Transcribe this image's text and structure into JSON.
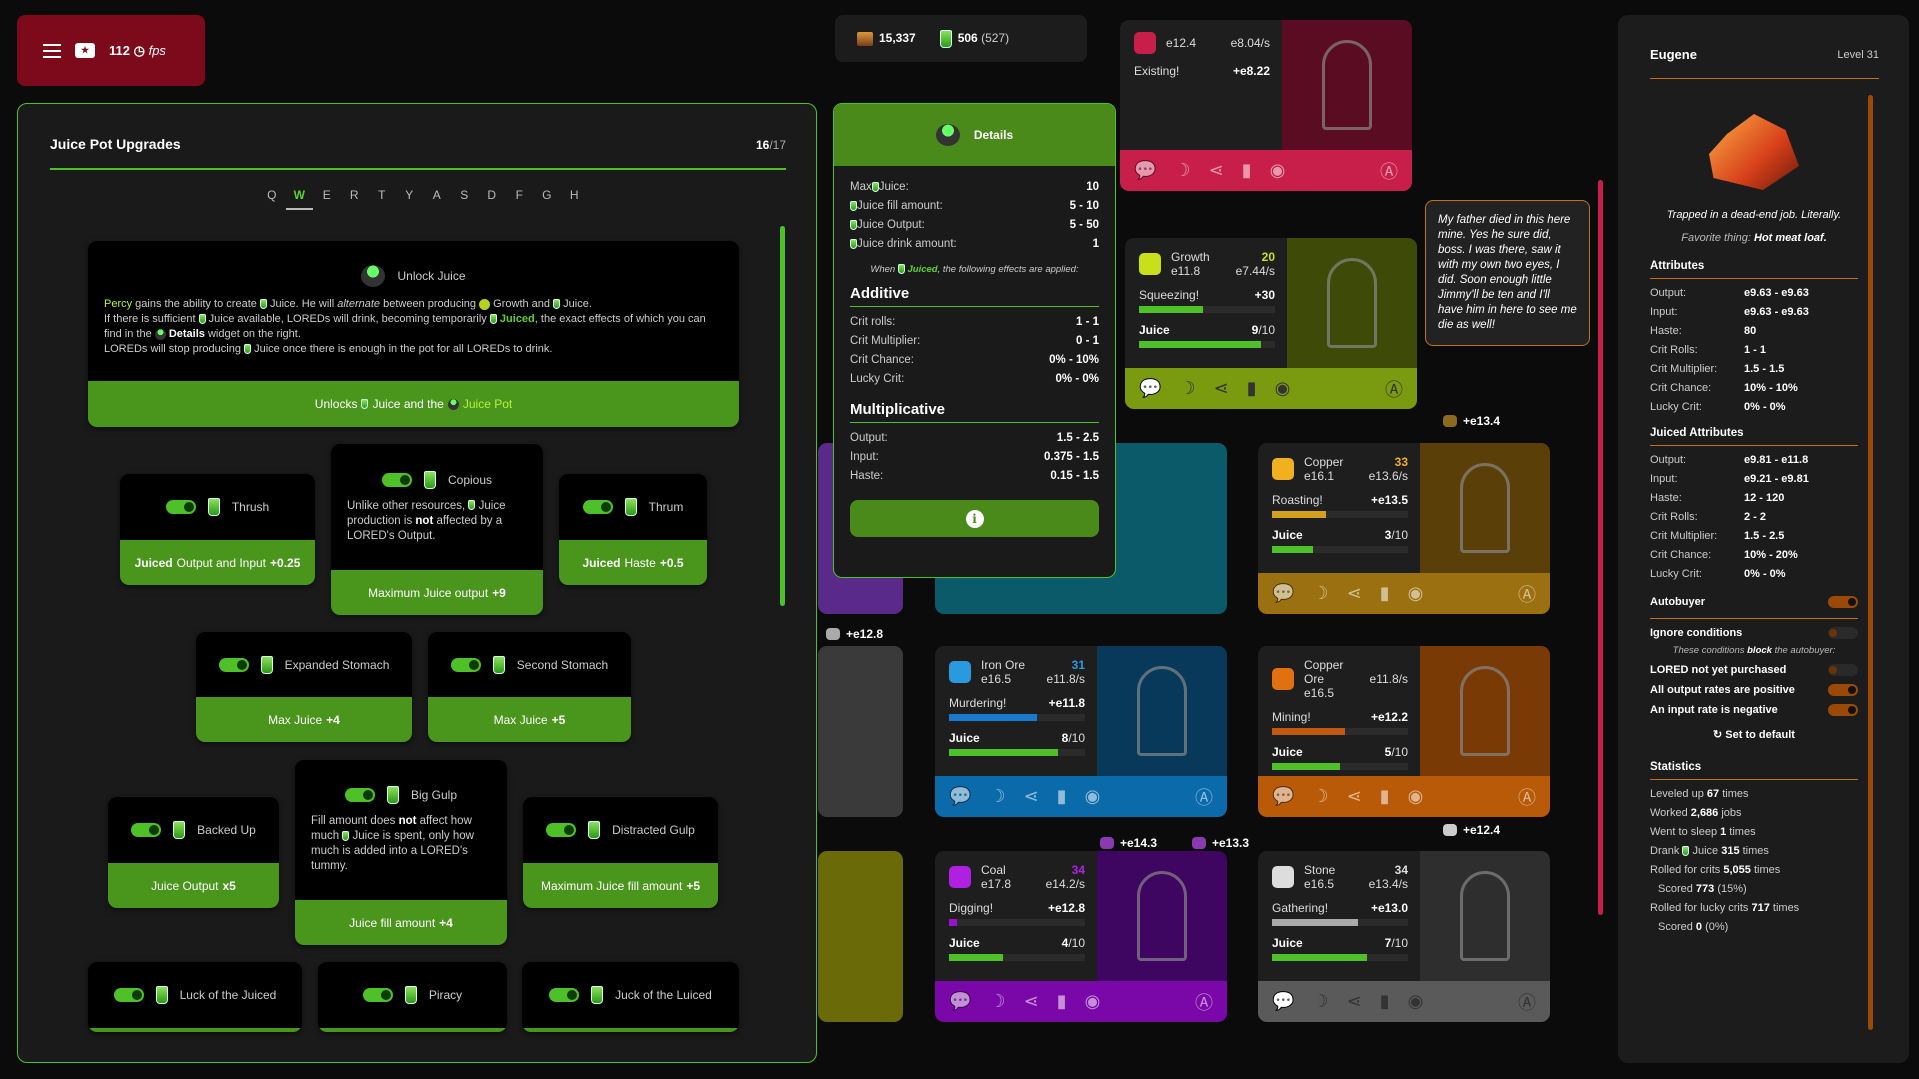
{
  "topbar": {
    "fps_value": "112",
    "fps_unit": "fps",
    "icons": [
      "menu-icon",
      "ticket-icon",
      "speedometer-icon"
    ]
  },
  "upgrades_panel": {
    "title": "Juice Pot Upgrades",
    "owned": "16",
    "total": "/17",
    "tabs": [
      "Q",
      "W",
      "E",
      "R",
      "T",
      "Y",
      "A",
      "S",
      "D",
      "F",
      "G",
      "H"
    ],
    "active_tab": "W",
    "unlock": {
      "title": "Unlock Juice",
      "p1": [
        {
          "t": "Percy",
          "c": "hl"
        },
        {
          "t": " gains the ability to create "
        },
        {
          "i": "glass"
        },
        {
          "t": " Juice. He will "
        },
        {
          "t": "alternate",
          "c": "em"
        },
        {
          "t": " between producing "
        },
        {
          "i": "growth"
        },
        {
          "t": " Growth and "
        },
        {
          "i": "glass"
        },
        {
          "t": " Juice."
        }
      ],
      "p2": [
        {
          "t": "If there is sufficient "
        },
        {
          "i": "glass"
        },
        {
          "t": " Juice available, LOREDs will drink, becoming temporarily "
        },
        {
          "i": "glass"
        },
        {
          "t": " "
        },
        {
          "t": "Juiced",
          "c": "hlg"
        },
        {
          "t": ", the exact effects of which you can find in the "
        },
        {
          "i": "pot"
        },
        {
          "t": " "
        },
        {
          "t": "Details",
          "c": "b"
        },
        {
          "t": " widget on the right."
        }
      ],
      "p3": [
        {
          "t": "LOREDs will stop producing "
        },
        {
          "i": "glass"
        },
        {
          "t": " Juice once there is enough in the pot for all LOREDs to drink."
        }
      ],
      "effect": [
        {
          "t": "Unlocks "
        },
        {
          "i": "glass"
        },
        {
          "t": " Juice and the "
        },
        {
          "i": "pot"
        },
        {
          "t": " Juice Pot",
          "c": "hl"
        }
      ]
    },
    "cards": [
      {
        "name": "Thrush",
        "effect": [
          {
            "t": "Juiced",
            "c": "b"
          },
          {
            "t": " Output and Input "
          },
          {
            "t": "+0.25",
            "c": "b"
          }
        ]
      },
      {
        "name": "Copious",
        "desc": [
          {
            "t": "Unlike other resources, "
          },
          {
            "i": "glass"
          },
          {
            "t": " Juice production is "
          },
          {
            "t": "not",
            "c": "b"
          },
          {
            "t": " affected by a LORED's Output."
          }
        ],
        "effect": [
          {
            "t": "Maximum Juice output "
          },
          {
            "t": "+9",
            "c": "b"
          }
        ]
      },
      {
        "name": "Thrum",
        "effect": [
          {
            "t": "Juiced",
            "c": "b"
          },
          {
            "t": " Haste "
          },
          {
            "t": "+0.5",
            "c": "b"
          }
        ]
      },
      {
        "name": "Expanded Stomach",
        "effect": [
          {
            "t": "Max Juice "
          },
          {
            "t": "+4",
            "c": "b"
          }
        ]
      },
      {
        "name": "Second Stomach",
        "effect": [
          {
            "t": "Max Juice "
          },
          {
            "t": "+5",
            "c": "b"
          }
        ]
      },
      {
        "name": "Backed Up",
        "effect": [
          {
            "t": "Juice Output "
          },
          {
            "t": "x5",
            "c": "b"
          }
        ]
      },
      {
        "name": "Big Gulp",
        "desc": [
          {
            "t": "Fill amount does "
          },
          {
            "t": "not",
            "c": "b"
          },
          {
            "t": " affect how much "
          },
          {
            "i": "glass"
          },
          {
            "t": " Juice is spent, only how much is added into a LORED's tummy."
          }
        ],
        "effect": [
          {
            "t": "Juice fill amount "
          },
          {
            "t": "+4",
            "c": "b"
          }
        ]
      },
      {
        "name": "Distracted Gulp",
        "effect": [
          {
            "t": "Maximum Juice fill amount "
          },
          {
            "t": "+5",
            "c": "b"
          }
        ]
      },
      {
        "name": "Luck of the Juiced"
      },
      {
        "name": "Piracy"
      },
      {
        "name": "Juck of the Luiced"
      }
    ]
  },
  "resources": {
    "chests": "15,337",
    "juice": "506",
    "juice_paren": "(527)"
  },
  "details": {
    "title": "Details",
    "top": [
      {
        "k": "Max",
        "icon": true,
        "k2": "Juice:",
        "v": "10"
      },
      {
        "k": "",
        "icon": true,
        "k2": "Juice fill amount:",
        "v": "5 - 10"
      },
      {
        "k": "",
        "icon": true,
        "k2": "Juice Output:",
        "v": "5 - 50"
      },
      {
        "k": "",
        "icon": true,
        "k2": "Juice drink amount:",
        "v": "1"
      }
    ],
    "when_pre": "When",
    "when_juiced": "Juiced",
    "when_post": ", the following effects are applied:",
    "additive_title": "Additive",
    "additive": [
      {
        "k": "Crit rolls:",
        "v": "1 - 1"
      },
      {
        "k": "Crit Multiplier:",
        "v": "0 - 1"
      },
      {
        "k": "Crit Chance:",
        "v": "0% - 10%"
      },
      {
        "k": "Lucky Crit:",
        "v": "0% - 0%"
      }
    ],
    "multiplicative_title": "Multiplicative",
    "multiplicative": [
      {
        "k": "Output:",
        "v": "1.5 - 2.5"
      },
      {
        "k": "Input:",
        "v": "0.375 - 1.5"
      },
      {
        "k": "Haste:",
        "v": "0.15 - 1.5"
      }
    ]
  },
  "loreds": [
    {
      "id": "partial-top",
      "amount": "e12.4",
      "rate": "e8.04/s",
      "job": "Existing!",
      "gain": "+e8.22",
      "color": "#c81e4a",
      "dark": "#5a0c22"
    },
    {
      "id": "growth",
      "name": "Growth",
      "level": "20",
      "amount": "e11.8",
      "rate": "e7.44/s",
      "job": "Squeezing!",
      "gain": "+30",
      "job_progress": 0.47,
      "juice": "9",
      "juice_max": "/10",
      "color": "#7a9a10",
      "dark": "#3e4a08",
      "level_color": "#c8e01a",
      "bar": "#4fc128"
    },
    {
      "id": "copper",
      "name": "Copper",
      "level": "33",
      "amount": "e16.1",
      "rate": "e13.6/s",
      "job": "Roasting!",
      "gain": "+e13.5",
      "job_progress": 0.4,
      "juice": "3",
      "juice_max": "/10",
      "color": "#9a7010",
      "dark": "#5a4008",
      "level_color": "#f0b020",
      "bar": "#d4a020"
    },
    {
      "id": "iron-ore",
      "name": "Iron Ore",
      "level": "31",
      "amount": "e16.5",
      "rate": "e11.8/s",
      "job": "Murdering!",
      "gain": "+e11.8",
      "job_progress": 0.65,
      "juice": "8",
      "juice_max": "/10",
      "color": "#0a6aaa",
      "dark": "#08395a",
      "level_color": "#2a9ae0",
      "bar": "#1a7ad0"
    },
    {
      "id": "copper-ore",
      "name": "Copper Ore",
      "level": "",
      "amount": "e16.5",
      "rate": "e11.8/s",
      "job": "Mining!",
      "gain": "+e12.2",
      "job_progress": 0.54,
      "juice": "5",
      "juice_max": "/10",
      "color": "#b85a08",
      "dark": "#7a3a06",
      "level_color": "#e07010",
      "bar": "#c05a10"
    },
    {
      "id": "coal",
      "name": "Coal",
      "level": "34",
      "amount": "e17.8",
      "rate": "e14.2/s",
      "job": "Digging!",
      "gain": "+e12.8",
      "job_progress": 0.06,
      "juice": "4",
      "juice_max": "/10",
      "color": "#7a08a8",
      "dark": "#3e0660",
      "level_color": "#b020e0",
      "bar": "#9a10d0"
    },
    {
      "id": "stone",
      "name": "Stone",
      "level": "34",
      "amount": "e16.5",
      "rate": "e13.4/s",
      "job": "Gathering!",
      "gain": "+e13.0",
      "job_progress": 0.63,
      "juice": "7",
      "juice_max": "/10",
      "color": "#5a5a5a",
      "dark": "#2e2e2e",
      "level_color": "#ddd",
      "bar": "#aaa"
    }
  ],
  "floating_gains": [
    {
      "v": "+e13.4"
    },
    {
      "v": "+e12.8"
    },
    {
      "v": "+e14.3"
    },
    {
      "v": "+e13.3"
    },
    {
      "v": "+e12.4"
    }
  ],
  "tooltip": "My father died in this here mine. Yes he sure did, boss. I was there, saw it with my own two eyes, I did. Soon enough little Jimmy'll be ten and I'll have him in here to see me die as well!",
  "lored_panel": {
    "name": "Eugene",
    "level": "Level 31",
    "quote": "Trapped in a dead-end job. Literally.",
    "fav_label": "Favorite thing:",
    "fav": "Hot meat loaf.",
    "attributes_title": "Attributes",
    "attributes": [
      {
        "k": "Output:",
        "v": "e9.63 - e9.63"
      },
      {
        "k": "Input:",
        "v": "e9.63 - e9.63"
      },
      {
        "k": "Haste:",
        "v": "80"
      },
      {
        "k": "Crit Rolls:",
        "v": "1 - 1"
      },
      {
        "k": "Crit Multiplier:",
        "v": "1.5 - 1.5"
      },
      {
        "k": "Crit Chance:",
        "v": "10% - 10%"
      },
      {
        "k": "Lucky Crit:",
        "v": "0% - 0%"
      }
    ],
    "juiced_title": "Juiced Attributes",
    "juiced": [
      {
        "k": "Output:",
        "v": "e9.81 - e11.8"
      },
      {
        "k": "Input:",
        "v": "e9.21 - e9.81"
      },
      {
        "k": "Haste:",
        "v": "12 - 120"
      },
      {
        "k": "Crit Rolls:",
        "v": "2 - 2"
      },
      {
        "k": "Crit Multiplier:",
        "v": "1.5 - 2.5"
      },
      {
        "k": "Crit Chance:",
        "v": "10% - 20%"
      },
      {
        "k": "Lucky Crit:",
        "v": "0% - 0%"
      }
    ],
    "autobuyer": "Autobuyer",
    "autobuyer_on": true,
    "ignore": "Ignore conditions",
    "ignore_on": false,
    "cond_note_pre": "These conditions ",
    "cond_note_b": "block",
    "cond_note_post": " the autobuyer:",
    "conditions": [
      {
        "k": "LORED not yet purchased",
        "on": false
      },
      {
        "k": "All output rates are positive",
        "on": true
      },
      {
        "k": "An input rate is negative",
        "on": true
      }
    ],
    "reset": "Set to default",
    "statistics_title": "Statistics",
    "stats": [
      [
        {
          "t": "Leveled up "
        },
        {
          "t": "67",
          "b": 1
        },
        {
          "t": " times"
        }
      ],
      [
        {
          "t": "Worked "
        },
        {
          "t": "2,686",
          "b": 1
        },
        {
          "t": " jobs"
        }
      ],
      [
        {
          "t": "Went to sleep "
        },
        {
          "t": "1",
          "b": 1
        },
        {
          "t": " times"
        }
      ],
      [
        {
          "t": "Drank "
        },
        {
          "i": 1
        },
        {
          "t": " Juice "
        },
        {
          "t": "315",
          "b": 1
        },
        {
          "t": " times"
        }
      ],
      [
        {
          "t": "Rolled for crits "
        },
        {
          "t": "5,055",
          "b": 1
        },
        {
          "t": " times"
        }
      ],
      [
        {
          "t": "Scored "
        },
        {
          "t": "773",
          "b": 1
        },
        {
          "t": " (15%)"
        }
      ],
      [
        {
          "t": "Rolled for lucky crits "
        },
        {
          "t": "717",
          "b": 1
        },
        {
          "t": " times"
        }
      ],
      [
        {
          "t": "Scored "
        },
        {
          "t": "0",
          "b": 1
        },
        {
          "t": " (0%)"
        }
      ]
    ]
  },
  "colors": {
    "accent": "#4fc128",
    "button_green": "#4a961c",
    "topbar_red": "#7d0a1a",
    "lored_orange": "#c07020"
  }
}
